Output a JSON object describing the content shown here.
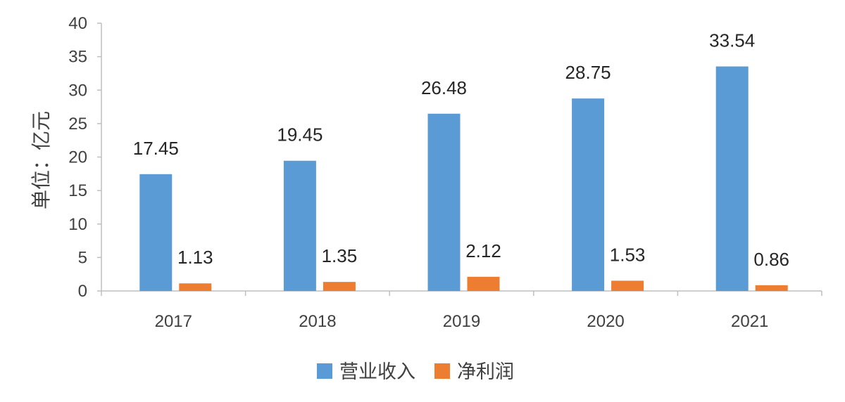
{
  "chart_data": {
    "type": "bar",
    "title": "",
    "xlabel": "",
    "ylabel": "单位：亿元",
    "categories": [
      "2017",
      "2018",
      "2019",
      "2020",
      "2021"
    ],
    "series": [
      {
        "name": "营业收入",
        "color": "#5B9BD5",
        "values": [
          17.45,
          19.45,
          26.48,
          28.75,
          33.54
        ]
      },
      {
        "name": "净利润",
        "color": "#ED7D31",
        "values": [
          1.13,
          1.35,
          2.12,
          1.53,
          0.86
        ]
      }
    ],
    "data_labels": [
      [
        "17.45",
        "19.45",
        "26.48",
        "28.75",
        "33.54"
      ],
      [
        "1.13",
        "1.35",
        "2.12",
        "1.53",
        "0.86"
      ]
    ],
    "ylim": [
      0,
      40
    ],
    "yticks": [
      "0",
      "5",
      "10",
      "15",
      "20",
      "25",
      "30",
      "35",
      "40"
    ],
    "grid": false,
    "legend": {
      "placement": "bottom",
      "entries": [
        "营业收入",
        "净利润"
      ]
    }
  }
}
